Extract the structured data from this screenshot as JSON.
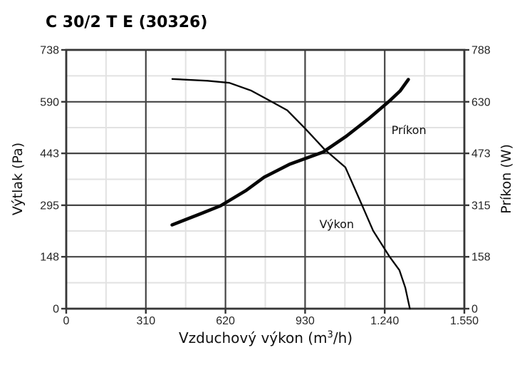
{
  "page": {
    "background": "#ffffff"
  },
  "chart_data": {
    "type": "line",
    "title": "C 30/2 T E (30326)",
    "x_axis": {
      "label_prefix": "Vzduchový výkon (m",
      "label_sup": "3",
      "label_suffix": "/h)",
      "min": 0,
      "max": 1550,
      "tick_values": [
        0,
        310,
        620,
        930,
        1240,
        1550
      ],
      "tick_labels": [
        "0",
        "310",
        "620",
        "930",
        "1.240",
        "1.550"
      ]
    },
    "y_axis_left": {
      "label": "Výtlak (Pa)",
      "min": 0,
      "max": 738,
      "tick_values": [
        0,
        148,
        295,
        443,
        590,
        738
      ],
      "tick_labels": [
        "0",
        "148",
        "295",
        "443",
        "590",
        "738"
      ]
    },
    "y_axis_right": {
      "label": "Príkon (W)",
      "min": 0,
      "max": 788,
      "tick_values": [
        0,
        158,
        315,
        473,
        630,
        788
      ],
      "tick_labels": [
        "0",
        "158",
        "315",
        "473",
        "630",
        "788"
      ]
    },
    "grid": {
      "major": true,
      "minor": true
    },
    "series": [
      {
        "name": "Výkon",
        "axis": "left",
        "stroke_width": 2.3,
        "points": [
          [
            413,
            655
          ],
          [
            550,
            650
          ],
          [
            635,
            644
          ],
          [
            720,
            622
          ],
          [
            790,
            594
          ],
          [
            860,
            566
          ],
          [
            930,
            514
          ],
          [
            1005,
            455
          ],
          [
            1087,
            403
          ],
          [
            1140,
            315
          ],
          [
            1195,
            222
          ],
          [
            1259,
            148
          ],
          [
            1297,
            110
          ],
          [
            1320,
            60
          ],
          [
            1338,
            0
          ]
        ]
      },
      {
        "name": "Príkon",
        "axis": "right",
        "stroke_width": 4.6,
        "points": [
          [
            412,
            255
          ],
          [
            520,
            288
          ],
          [
            600,
            313
          ],
          [
            700,
            360
          ],
          [
            770,
            400
          ],
          [
            870,
            440
          ],
          [
            1000,
            477
          ],
          [
            1090,
            525
          ],
          [
            1180,
            580
          ],
          [
            1255,
            630
          ],
          [
            1300,
            663
          ],
          [
            1332,
            698
          ]
        ]
      }
    ],
    "annotations": [
      {
        "text": "Výkon",
        "x": 1053,
        "y": 230,
        "axis": "left"
      },
      {
        "text": "Príkon",
        "x": 1334,
        "y": 532,
        "axis": "right"
      }
    ],
    "colors": {
      "curve": "#050505",
      "major_grid": "#454545",
      "minor_grid": "#e2e2e2",
      "border": "#363636",
      "tick_text": "#262626",
      "annotation_text": "#111111"
    }
  }
}
